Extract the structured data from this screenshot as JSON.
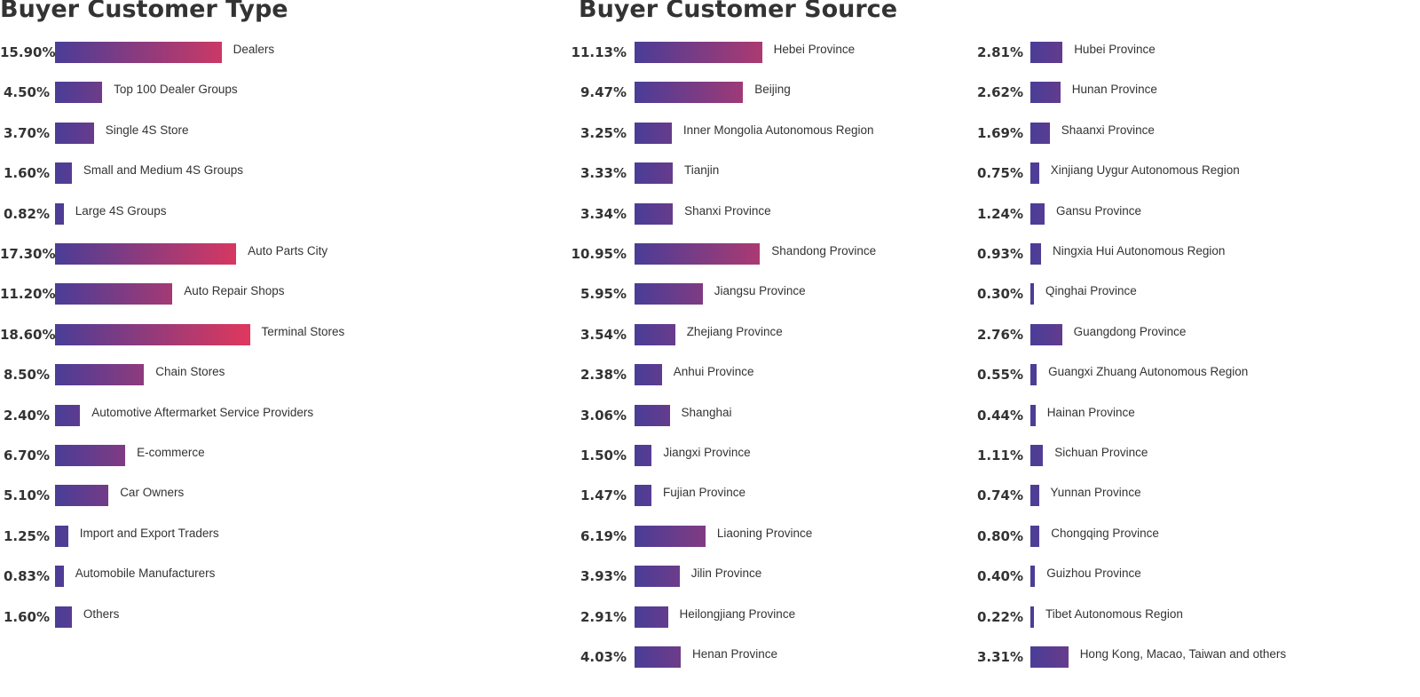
{
  "colors": {
    "bar_start": "#4a3d97",
    "bar_end": "#e4385c",
    "text": "#333333"
  },
  "chart_data": [
    {
      "type": "bar",
      "orientation": "horizontal",
      "title": "Buyer Customer Type",
      "categories": [
        "Dealers",
        "Top 100 Dealer Groups",
        "Single 4S Store",
        "Small and Medium 4S Groups",
        "Large 4S Groups",
        "Auto Parts City",
        "Auto Repair Shops",
        "Terminal Stores",
        "Chain Stores",
        "Automotive Aftermarket Service Providers",
        "E-commerce",
        "Car Owners",
        "Import and Export Traders",
        "Automobile Manufacturers",
        "Others"
      ],
      "values": [
        15.9,
        4.5,
        3.7,
        1.6,
        0.82,
        17.3,
        11.2,
        18.6,
        8.5,
        2.4,
        6.7,
        5.1,
        1.25,
        0.83,
        1.6
      ],
      "labels": [
        "15.90%",
        "4.50%",
        "3.70%",
        "1.60%",
        "0.82%",
        "17.30%",
        "11.20%",
        "18.60%",
        "8.50%",
        "2.40%",
        "6.70%",
        "5.10%",
        "1.25%",
        "0.83%",
        "1.60%"
      ]
    },
    {
      "type": "bar",
      "orientation": "horizontal",
      "title": "Buyer Customer Source",
      "categories": [
        "Hebei Province",
        "Beijing",
        "Inner Mongolia Autonomous Region",
        "Tianjin",
        "Shanxi Province",
        "Shandong Province",
        "Jiangsu Province",
        "Zhejiang Province",
        "Anhui Province",
        "Shanghai",
        "Jiangxi Province",
        "Fujian Province",
        "Liaoning Province",
        "Jilin Province",
        "Heilongjiang Province",
        "Henan Province"
      ],
      "values": [
        11.13,
        9.47,
        3.25,
        3.33,
        3.34,
        10.95,
        5.95,
        3.54,
        2.38,
        3.06,
        1.5,
        1.47,
        6.19,
        3.93,
        2.91,
        4.03
      ],
      "labels": [
        "11.13%",
        "9.47%",
        "3.25%",
        "3.33%",
        "3.34%",
        "10.95%",
        "5.95%",
        "3.54%",
        "2.38%",
        "3.06%",
        "1.50%",
        "1.47%",
        "6.19%",
        "3.93%",
        "2.91%",
        "4.03%"
      ]
    },
    {
      "type": "bar",
      "orientation": "horizontal",
      "title": "",
      "categories": [
        "Hubei Province",
        "Hunan Province",
        "Shaanxi Province",
        "Xinjiang Uygur Autonomous Region",
        "Gansu Province",
        "Ningxia Hui Autonomous Region",
        "Qinghai Province",
        "Guangdong Province",
        "Guangxi Zhuang Autonomous Region",
        "Hainan Province",
        "Sichuan Province",
        "Yunnan Province",
        "Chongqing Province",
        "Guizhou Province",
        "Tibet Autonomous Region",
        "Hong Kong, Macao, Taiwan and others"
      ],
      "values": [
        2.81,
        2.62,
        1.69,
        0.75,
        1.24,
        0.93,
        0.3,
        2.76,
        0.55,
        0.44,
        1.11,
        0.74,
        0.8,
        0.4,
        0.22,
        3.31
      ],
      "labels": [
        "2.81%",
        "2.62%",
        "1.69%",
        "0.75%",
        "1.24%",
        "0.93%",
        "0.30%",
        "2.76%",
        "0.55%",
        "0.44%",
        "1.11%",
        "0.74%",
        "0.80%",
        "0.40%",
        "0.22%",
        "3.31%"
      ]
    }
  ]
}
